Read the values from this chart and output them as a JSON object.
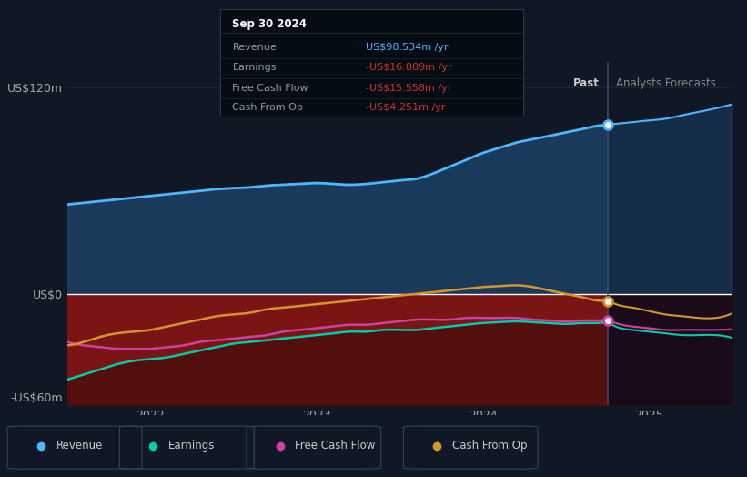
{
  "bg_color": "#0f1824",
  "plot_bg_color": "#0f1824",
  "grid_color": "#1e2d45",
  "tooltip_bg": "#050a10",
  "title_box_text": "Sep 30 2024",
  "tooltip_items": [
    {
      "label": "Revenue",
      "value": "US$98.534m /yr",
      "color": "#4db8ff"
    },
    {
      "label": "Earnings",
      "value": "-US$16.889m /yr",
      "color": "#cc3333"
    },
    {
      "label": "Free Cash Flow",
      "value": "-US$15.558m /yr",
      "color": "#cc3333"
    },
    {
      "label": "Cash From Op",
      "value": "-US$4.251m /yr",
      "color": "#cc3333"
    }
  ],
  "y_label_120": "US$120m",
  "y_label_0": "US$0",
  "y_label_neg60": "-US$60m",
  "x_labels": [
    "2022",
    "2023",
    "2024",
    "2025"
  ],
  "past_label": "Past",
  "forecast_label": "Analysts Forecasts",
  "ylim": [
    -65,
    135
  ],
  "revenue_color": "#4db8ff",
  "earnings_color": "#00ccaa",
  "fcf_color": "#d040a0",
  "cashop_color": "#d4962a",
  "revenue_fill_color": "#1a3a5c",
  "negative_fill_color_left": "#8b1a1a",
  "negative_fill_color_right": "#2a0a2a",
  "legend_items": [
    {
      "label": "Revenue",
      "color": "#4db8ff"
    },
    {
      "label": "Earnings",
      "color": "#00ccaa"
    },
    {
      "label": "Free Cash Flow",
      "color": "#d040a0"
    },
    {
      "label": "Cash From Op",
      "color": "#d4962a"
    }
  ],
  "x_vals": [
    2021.5,
    2021.6,
    2021.7,
    2021.8,
    2021.9,
    2022.0,
    2022.1,
    2022.2,
    2022.3,
    2022.4,
    2022.5,
    2022.6,
    2022.7,
    2022.8,
    2022.9,
    2023.0,
    2023.1,
    2023.2,
    2023.3,
    2023.4,
    2023.5,
    2023.6,
    2023.7,
    2023.8,
    2023.9,
    2024.0,
    2024.1,
    2024.2,
    2024.3,
    2024.4,
    2024.5,
    2024.6,
    2024.7,
    2024.75,
    2024.8,
    2024.9,
    2025.0,
    2025.1,
    2025.2,
    2025.3,
    2025.4
  ],
  "revenue_y": [
    52,
    53,
    54,
    55,
    56,
    57,
    58,
    59,
    60,
    61,
    61.5,
    62,
    63,
    63.5,
    64,
    64.5,
    64,
    63.5,
    64,
    65,
    66,
    67,
    70,
    74,
    78,
    82,
    85,
    88,
    90,
    92,
    94,
    96,
    98,
    98.5,
    99,
    100,
    101,
    102,
    104,
    106,
    108
  ],
  "earnings_y": [
    -50,
    -47,
    -44,
    -41,
    -39,
    -38,
    -37,
    -35,
    -33,
    -31,
    -29,
    -28,
    -27,
    -26,
    -25,
    -24,
    -23,
    -22,
    -22,
    -21,
    -21,
    -21,
    -20,
    -19,
    -18,
    -17,
    -16.5,
    -16,
    -16.5,
    -17,
    -17.5,
    -17,
    -16.9,
    -16.9,
    -19,
    -21,
    -22,
    -23,
    -24,
    -24,
    -24
  ],
  "fcf_y": [
    -28,
    -30,
    -31,
    -32,
    -32,
    -32,
    -31,
    -30,
    -28,
    -27,
    -26,
    -25,
    -24,
    -22,
    -21,
    -20,
    -19,
    -18,
    -18,
    -17,
    -16,
    -15,
    -15,
    -15,
    -14,
    -14,
    -14,
    -14,
    -15,
    -15.5,
    -16,
    -15.5,
    -15.5,
    -15.5,
    -17,
    -19,
    -20,
    -21,
    -21,
    -21,
    -21
  ],
  "cashop_y": [
    -30,
    -28,
    -25,
    -23,
    -22,
    -21,
    -19,
    -17,
    -15,
    -13,
    -12,
    -11,
    -9,
    -8,
    -7,
    -6,
    -5,
    -4,
    -3,
    -2,
    -1,
    0,
    1,
    2,
    3,
    4,
    4.5,
    5,
    4,
    2,
    0,
    -2,
    -4,
    -4.25,
    -6,
    -8,
    -10,
    -12,
    -13,
    -14,
    -14
  ],
  "divider_x": 2024.75,
  "revenue_dot_y": 98.5,
  "fcf_dot_y": -15.5,
  "cashop_dot_y": -4.25,
  "xmin": 2021.5,
  "xmax": 2025.5
}
